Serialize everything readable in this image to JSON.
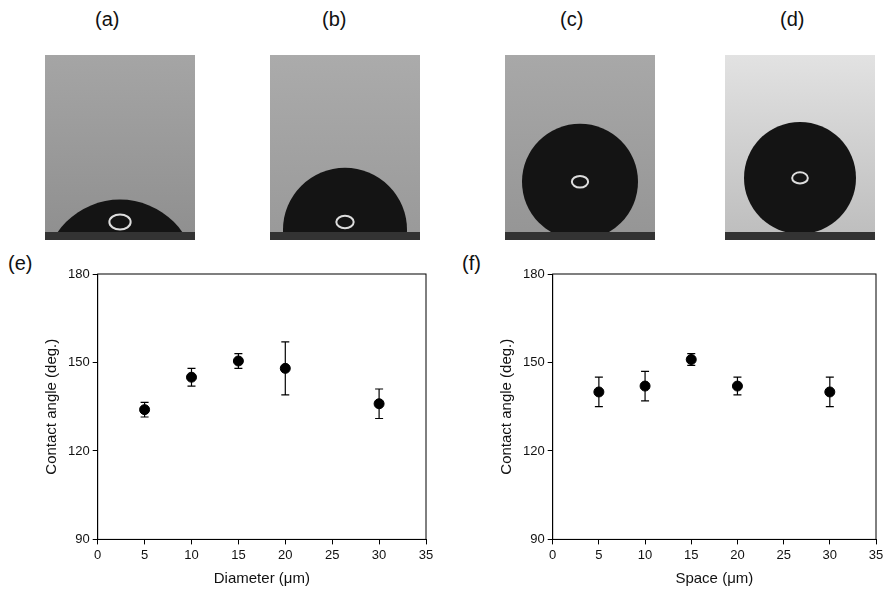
{
  "photos": [
    {
      "label": "(a)"
    },
    {
      "label": "(b)"
    },
    {
      "label": "(c)"
    },
    {
      "label": "(d)"
    }
  ],
  "chart_data": [
    {
      "type": "scatter",
      "title": "(e)",
      "x_label": "Diameter (μm)",
      "y_label": "Contact angle (deg.)",
      "x": [
        5,
        10,
        15,
        20,
        30
      ],
      "values": [
        134,
        145,
        150.5,
        148,
        136
      ],
      "errors": [
        2.5,
        3,
        2.5,
        9,
        5
      ],
      "color": "#000000",
      "marker": "circle",
      "xlim": [
        0,
        35
      ],
      "xticks": [
        0,
        5,
        10,
        15,
        20,
        25,
        30,
        35
      ],
      "ylim": [
        90,
        180
      ],
      "yticks": [
        90,
        120,
        150,
        180
      ],
      "grid": false
    },
    {
      "type": "scatter",
      "title": "(f)",
      "x_label": "Space (μm)",
      "y_label": "Contact angle (deg.)",
      "x": [
        5,
        10,
        15,
        20,
        30
      ],
      "values": [
        140,
        142,
        151,
        142,
        140
      ],
      "errors": [
        5,
        5,
        2,
        3,
        5
      ],
      "color": "#000000",
      "marker": "circle",
      "xlim": [
        0,
        35
      ],
      "xticks": [
        0,
        5,
        10,
        15,
        20,
        25,
        30,
        35
      ],
      "ylim": [
        90,
        180
      ],
      "yticks": [
        90,
        120,
        150,
        180
      ],
      "grid": false
    }
  ]
}
